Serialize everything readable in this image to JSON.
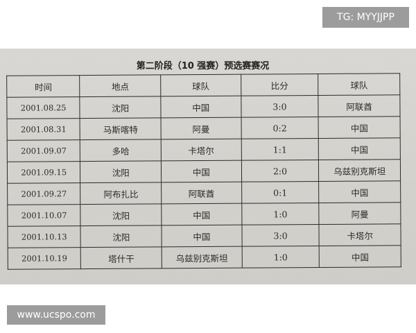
{
  "title": "第二阶段（10 强赛）预选赛赛况",
  "headers": [
    "时间",
    "地点",
    "球队",
    "比分",
    "球队"
  ],
  "rows": [
    [
      "2001.08.25",
      "沈阳",
      "中国",
      "3:0",
      "阿联酋"
    ],
    [
      "2001.08.31",
      "马斯喀特",
      "阿曼",
      "0:2",
      "中国"
    ],
    [
      "2001.09.07",
      "多哈",
      "卡塔尔",
      "1:1",
      "中国"
    ],
    [
      "2001.09.15",
      "沈阳",
      "中国",
      "2:0",
      "乌兹别克斯坦"
    ],
    [
      "2001.09.27",
      "阿布扎比",
      "阿联酋",
      "0:1",
      "中国"
    ],
    [
      "2001.10.07",
      "沈阳",
      "中国",
      "1:0",
      "阿曼"
    ],
    [
      "2001.10.13",
      "沈阳",
      "中国",
      "3:0",
      "卡塔尔"
    ],
    [
      "2001.10.19",
      "塔什干",
      "乌兹别克斯坦",
      "1:0",
      "中国"
    ]
  ],
  "watermarks": {
    "top_right": "TG: MYYJJPP",
    "bottom_left": "www.ucspo.com"
  }
}
